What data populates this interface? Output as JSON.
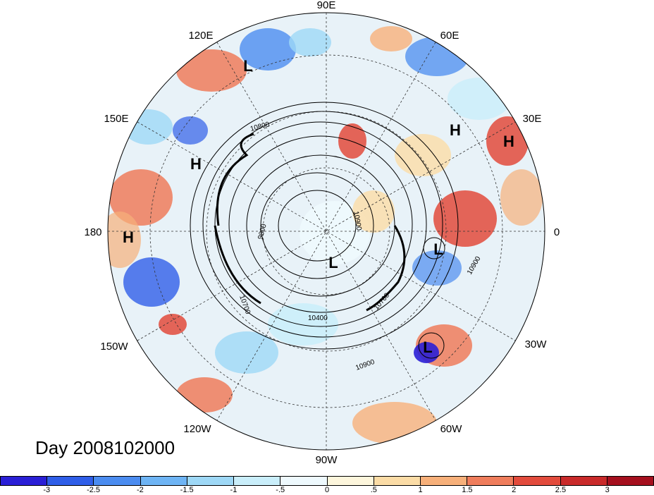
{
  "title": "Day 2008102000",
  "longitude_labels": [
    "90E",
    "60E",
    "30E",
    "0",
    "30W",
    "60W",
    "90W",
    "120W",
    "150W",
    "180",
    "150E",
    "120E"
  ],
  "pressure_markers": [
    "H",
    "H",
    "H",
    "H",
    "L",
    "L",
    "L",
    "L"
  ],
  "contour_labels": [
    "10800",
    "9800",
    "10700",
    "10400",
    "10900",
    "10900",
    "10700",
    "10900"
  ],
  "colorbar": {
    "labels": [
      "-3",
      "-2.5",
      "-2",
      "-1.5",
      "-1",
      "-.5",
      "0",
      ".5",
      "1",
      "1.5",
      "2",
      "2.5",
      "3"
    ],
    "colors": [
      "#2a1fd6",
      "#2f5ee8",
      "#4b8cf0",
      "#6eb4f4",
      "#9ed8f6",
      "#c9eefa",
      "#eef9fd",
      "#fdf6dc",
      "#fbdca6",
      "#f7b07a",
      "#ef7d5c",
      "#e24b3c",
      "#c92a2a",
      "#a50f1e"
    ]
  }
}
